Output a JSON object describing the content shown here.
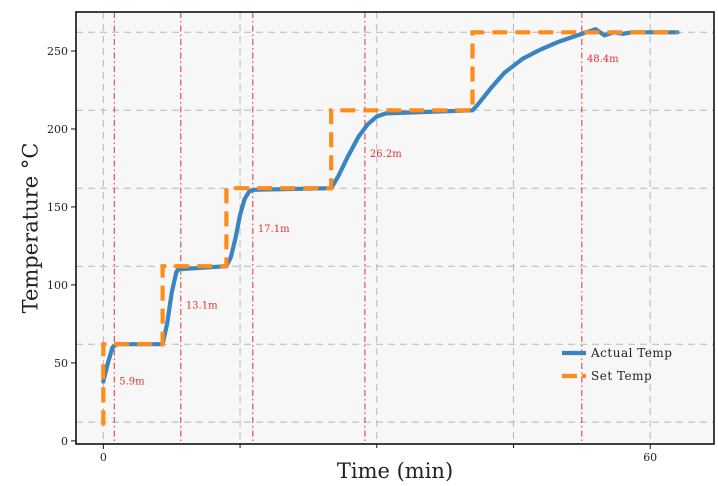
{
  "chart_data": {
    "type": "line",
    "title": "",
    "xlabel": "Time (min)",
    "ylabel": "Temperature °C",
    "xlim": [
      -3,
      67
    ],
    "ylim": [
      -2,
      275
    ],
    "x_ticks": [
      0,
      60
    ],
    "x_tick_labels": [
      "0",
      "60"
    ],
    "x_minor_ticks": [
      15,
      30,
      45
    ],
    "y_ticks": [
      0,
      50,
      100,
      150,
      200,
      250
    ],
    "y_tick_labels": [
      "0",
      "50",
      "100",
      "150",
      "200",
      "250"
    ],
    "grid": true,
    "legend_position": "lower-right",
    "series": [
      {
        "name": "Actual Temp",
        "color": "#3a84c0",
        "style": "solid",
        "x": [
          0,
          0.5,
          1.0,
          1.5,
          2.0,
          6.5,
          7.0,
          7.5,
          8.0,
          8.2,
          13.5,
          14.0,
          14.5,
          15.0,
          15.5,
          16.0,
          16.5,
          25.0,
          25.8,
          26.8,
          28.0,
          29.0,
          30.0,
          31.0,
          40.5,
          41.0,
          42.5,
          44.0,
          46.0,
          48.0,
          50.0,
          52.0,
          54.0,
          55.0,
          56.0,
          57.0,
          58.0,
          60.0,
          63.0
        ],
        "y": [
          38,
          50,
          60,
          62,
          62,
          62,
          75,
          95,
          108,
          110,
          112,
          118,
          130,
          145,
          155,
          160,
          161,
          162,
          170,
          182,
          195,
          203,
          208,
          210,
          212,
          215,
          226,
          236,
          245,
          251,
          256,
          260,
          264,
          260,
          262,
          261,
          262,
          262,
          262
        ]
      },
      {
        "name": "Set Temp",
        "color": "#ff8c1a",
        "style": "dashed",
        "x": [
          0,
          0,
          6.5,
          6.5,
          13.5,
          13.5,
          25.0,
          25.0,
          40.5,
          40.5,
          63.0
        ],
        "y": [
          10,
          62,
          62,
          112,
          112,
          162,
          162,
          212,
          212,
          262,
          262
        ]
      }
    ],
    "event_lines": [
      {
        "x": 1.2,
        "label": "5.9m",
        "label_y": 36
      },
      {
        "x": 8.5,
        "label": "13.1m",
        "label_y": 85
      },
      {
        "x": 16.4,
        "label": "17.1m",
        "label_y": 134
      },
      {
        "x": 28.7,
        "label": "26.2m",
        "label_y": 182
      },
      {
        "x": 52.5,
        "label": "48.4m",
        "label_y": 243
      }
    ],
    "event_line_color": "#e03030",
    "dashed_gridline_y": [
      12,
      62,
      112,
      162,
      212,
      262
    ]
  }
}
